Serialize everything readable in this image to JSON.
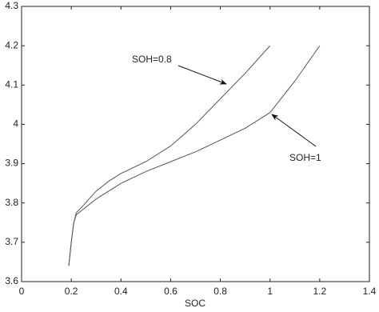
{
  "chart_data": {
    "type": "line",
    "x_label": "SOC",
    "series": [
      {
        "name": "SOH=0.8",
        "color": "#555555",
        "x": [
          0.19,
          0.2,
          0.21,
          0.22,
          0.25,
          0.3,
          0.35,
          0.4,
          0.5,
          0.6,
          0.7,
          0.8,
          0.9,
          1.0
        ],
        "values": [
          3.64,
          3.7,
          3.75,
          3.775,
          3.795,
          3.83,
          3.855,
          3.875,
          3.905,
          3.945,
          4.0,
          4.065,
          4.13,
          4.2
        ]
      },
      {
        "name": "SOH=1",
        "color": "#555555",
        "x": [
          0.19,
          0.2,
          0.21,
          0.22,
          0.25,
          0.3,
          0.35,
          0.4,
          0.5,
          0.6,
          0.7,
          0.8,
          0.9,
          1.0,
          1.1,
          1.2
        ],
        "values": [
          3.64,
          3.7,
          3.75,
          3.77,
          3.785,
          3.81,
          3.83,
          3.85,
          3.88,
          3.905,
          3.93,
          3.96,
          3.99,
          4.03,
          4.11,
          4.2
        ]
      }
    ],
    "xlim": [
      0,
      1.4
    ],
    "xticks": [
      0,
      0.2,
      0.4,
      0.6,
      0.8,
      1,
      1.2,
      1.4
    ],
    "ylim": [
      3.6,
      4.3
    ],
    "yticks": [
      3.6,
      3.7,
      3.8,
      3.9,
      4,
      4.1,
      4.2,
      4.3
    ],
    "grid": false
  }
}
